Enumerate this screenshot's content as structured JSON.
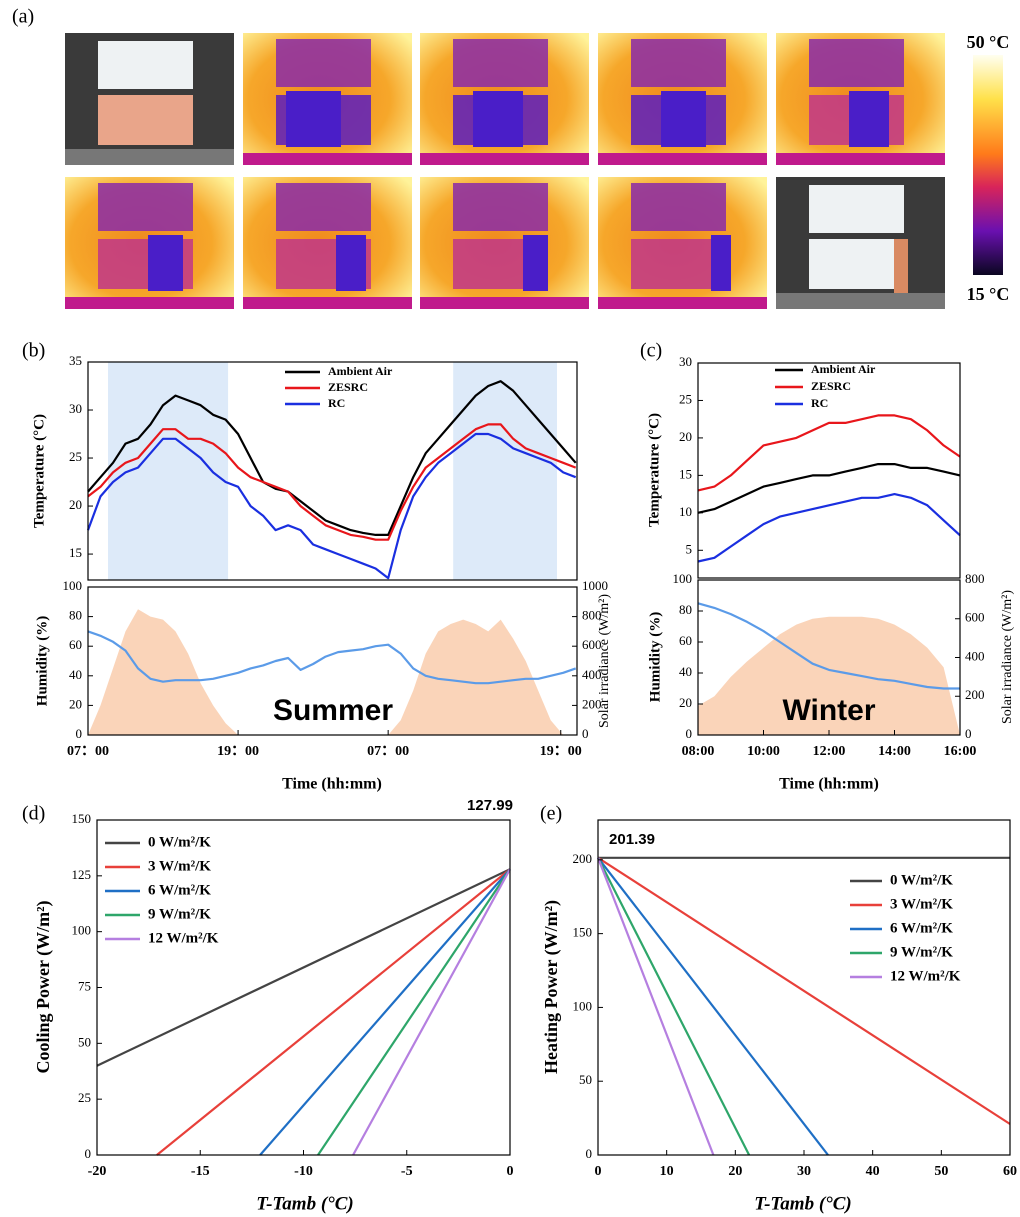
{
  "panel_a": {
    "label": "(a)",
    "colorbar_max": "50 °C",
    "colorbar_min": "15 °C"
  },
  "chart_data": [
    {
      "type": "line",
      "panel_label": "(b)",
      "ylabel": "Temperature (°C)",
      "legend": "top-center",
      "x": [
        0,
        1,
        2,
        3,
        4,
        5,
        6,
        7,
        8,
        9,
        10,
        11,
        12,
        13,
        14,
        15,
        16,
        17,
        18,
        19,
        20,
        21,
        22,
        23,
        24,
        25,
        26,
        27,
        28,
        29,
        30,
        31,
        32,
        33,
        34,
        35,
        36,
        37,
        38,
        39
      ],
      "xlim": [
        0,
        39.1
      ],
      "ylim": [
        12.3,
        35
      ],
      "yticks": [
        15,
        20,
        25,
        30,
        35
      ],
      "shaded_regions": [
        [
          1.6,
          11.2
        ],
        [
          29.2,
          37.5
        ]
      ],
      "shade_color": "#ddeaf9",
      "series": [
        {
          "name": "Ambient Air",
          "color": "#000000",
          "values": [
            21.5,
            23,
            24.5,
            26.5,
            27,
            28.5,
            30.5,
            31.5,
            31,
            30.5,
            29.5,
            29,
            27.5,
            25,
            22.5,
            21.8,
            21.5,
            20.5,
            19.5,
            18.5,
            18,
            17.5,
            17.2,
            17,
            17,
            20,
            23,
            25.5,
            27,
            28.5,
            30,
            31.5,
            32.5,
            33,
            32,
            30.5,
            29,
            27.5,
            26,
            24.5
          ]
        },
        {
          "name": "ZESRC",
          "color": "#e8161b",
          "values": [
            21,
            22,
            23.5,
            24.5,
            25,
            26.5,
            28,
            28,
            27,
            27,
            26.5,
            25.5,
            24,
            23,
            22.5,
            22,
            21.5,
            20,
            19,
            18,
            17.5,
            17,
            16.8,
            16.5,
            16.5,
            19.5,
            22,
            24,
            25,
            26,
            27,
            28,
            28.5,
            28.5,
            27,
            26,
            25.5,
            25,
            24.5,
            24
          ]
        },
        {
          "name": "RC",
          "color": "#1a2fe0",
          "values": [
            17.5,
            21,
            22.5,
            23.5,
            24,
            25.5,
            27,
            27,
            26,
            25,
            23.5,
            22.5,
            22,
            20,
            19,
            17.5,
            18,
            17.5,
            16,
            15.5,
            15,
            14.5,
            14,
            13.5,
            12.5,
            17.5,
            21,
            23,
            24.5,
            25.5,
            26.5,
            27.5,
            27.5,
            27,
            26,
            25.5,
            25,
            24.5,
            23.5,
            23
          ]
        }
      ]
    },
    {
      "type": "line",
      "ylabel": "Humidity (%)",
      "ylabel_color": "#5b9be8",
      "y2label": "Solar irradiance (W/m²)",
      "y2label_color": "#f4a46e",
      "xlabel": "Time (hh:mm)",
      "annotation": "Summer",
      "x": [
        0,
        1,
        2,
        3,
        4,
        5,
        6,
        7,
        8,
        9,
        10,
        11,
        12,
        13,
        14,
        15,
        16,
        17,
        18,
        19,
        20,
        21,
        22,
        23,
        24,
        25,
        26,
        27,
        28,
        29,
        30,
        31,
        32,
        33,
        34,
        35,
        36,
        37,
        38,
        39
      ],
      "xlim": [
        0,
        39.1
      ],
      "xticks": [
        {
          "value": 0,
          "label": "07：00"
        },
        {
          "value": 12,
          "label": "19：00"
        },
        {
          "value": 24,
          "label": "07：00"
        },
        {
          "value": 37.8,
          "label": "19：00"
        }
      ],
      "ylim": [
        0,
        100
      ],
      "yticks": [
        0,
        20,
        40,
        60,
        80,
        100
      ],
      "y2lim": [
        0,
        1000
      ],
      "y2ticks": [
        0,
        200,
        400,
        600,
        800,
        1000
      ],
      "series": [
        {
          "color": "#f9c9a8",
          "axis": "y2",
          "fill": true,
          "values": [
            0,
            200,
            450,
            700,
            850,
            800,
            780,
            700,
            550,
            350,
            200,
            80,
            0,
            0,
            0,
            0,
            0,
            0,
            0,
            0,
            0,
            0,
            0,
            0,
            0,
            100,
            300,
            550,
            700,
            750,
            780,
            750,
            700,
            780,
            650,
            500,
            300,
            100,
            0,
            0
          ]
        },
        {
          "color": "#5b9be8",
          "values": [
            70,
            67,
            63,
            57,
            45,
            38,
            36,
            37,
            37,
            37,
            38,
            40,
            42,
            45,
            47,
            50,
            52,
            44,
            48,
            53,
            56,
            57,
            58,
            60,
            61,
            55,
            45,
            40,
            38,
            37,
            36,
            35,
            35,
            36,
            37,
            38,
            38,
            40,
            42,
            45
          ]
        }
      ]
    },
    {
      "type": "line",
      "panel_label": "(c)",
      "ylabel": "Temperature (°C)",
      "legend": "top-center",
      "x": [
        8,
        8.5,
        9,
        9.5,
        10,
        10.5,
        11,
        11.5,
        12,
        12.5,
        13,
        13.5,
        14,
        14.5,
        15,
        15.5,
        16
      ],
      "xlim": [
        8,
        16
      ],
      "ylim": [
        1.3,
        30
      ],
      "yticks": [
        5,
        10,
        15,
        20,
        25,
        30
      ],
      "series": [
        {
          "name": "Ambient Air",
          "color": "#000000",
          "values": [
            10,
            10.5,
            11.5,
            12.5,
            13.5,
            14,
            14.5,
            15,
            15,
            15.5,
            16,
            16.5,
            16.5,
            16,
            16,
            15.5,
            15
          ]
        },
        {
          "name": "ZESRC",
          "color": "#e8161b",
          "values": [
            13,
            13.5,
            15,
            17,
            19,
            19.5,
            20,
            21,
            22,
            22,
            22.5,
            23,
            23,
            22.5,
            21,
            19,
            17.5
          ]
        },
        {
          "name": "RC",
          "color": "#1a2fe0",
          "values": [
            3.5,
            4,
            5.5,
            7,
            8.5,
            9.5,
            10,
            10.5,
            11,
            11.5,
            12,
            12,
            12.5,
            12,
            11,
            9,
            7
          ]
        }
      ]
    },
    {
      "type": "line",
      "ylabel": "Humidity (%)",
      "ylabel_color": "#5b9be8",
      "y2label": "Solar irradiance (W/m²)",
      "y2label_color": "#f4a46e",
      "xlabel": "Time (hh:mm)",
      "annotation": "Winter",
      "x": [
        8,
        8.5,
        9,
        9.5,
        10,
        10.5,
        11,
        11.5,
        12,
        12.5,
        13,
        13.5,
        14,
        14.5,
        15,
        15.5,
        16
      ],
      "xlim": [
        8,
        16
      ],
      "xticks": [
        {
          "value": 8,
          "label": "08:00"
        },
        {
          "value": 10,
          "label": "10:00"
        },
        {
          "value": 12,
          "label": "12:00"
        },
        {
          "value": 14,
          "label": "14:00"
        },
        {
          "value": 16,
          "label": "16:00"
        }
      ],
      "ylim": [
        0,
        100
      ],
      "yticks": [
        0,
        20,
        40,
        60,
        80,
        100
      ],
      "y2lim": [
        0,
        800
      ],
      "y2ticks": [
        0,
        200,
        400,
        600,
        800
      ],
      "series": [
        {
          "color": "#f9c9a8",
          "axis": "y2",
          "fill": true,
          "values": [
            150,
            200,
            300,
            380,
            450,
            520,
            570,
            600,
            610,
            610,
            610,
            600,
            570,
            520,
            450,
            350,
            0
          ]
        },
        {
          "color": "#5b9be8",
          "values": [
            85,
            82,
            78,
            73,
            67,
            60,
            53,
            46,
            42,
            40,
            38,
            36,
            35,
            33,
            31,
            30,
            30
          ]
        }
      ]
    },
    {
      "type": "line",
      "panel_label": "(d)",
      "ylabel": "Cooling Power (W/m²)",
      "xlabel": "T-Tamb (°C)",
      "legend": "upper-left",
      "annotation": "127.99",
      "xlim": [
        -20,
        0
      ],
      "xticks": [
        -20,
        -15,
        -10,
        -5,
        0
      ],
      "ylim": [
        0,
        150
      ],
      "yticks": [
        0,
        25,
        50,
        75,
        100,
        125,
        150
      ],
      "series": [
        {
          "name": "0 W/m²/K",
          "color": "#444444",
          "x": [
            -20,
            0
          ],
          "values": [
            40,
            127.99
          ]
        },
        {
          "name": "3 W/m²/K",
          "color": "#e8403a",
          "x": [
            -17.1,
            0
          ],
          "values": [
            0,
            127.99
          ]
        },
        {
          "name": "6 W/m²/K",
          "color": "#1f6fc5",
          "x": [
            -12.1,
            0
          ],
          "values": [
            0,
            127.99
          ]
        },
        {
          "name": "9 W/m²/K",
          "color": "#2ea66a",
          "x": [
            -9.3,
            0
          ],
          "values": [
            0,
            127.99
          ]
        },
        {
          "name": "12 W/m²/K",
          "color": "#b57fe0",
          "x": [
            -7.6,
            0
          ],
          "values": [
            0,
            127.99
          ]
        }
      ]
    },
    {
      "type": "line",
      "panel_label": "(e)",
      "ylabel": "Heating Power (W/m²)",
      "xlabel": "T-Tamb (°C)",
      "legend": "right",
      "annotation": "201.39",
      "xlim": [
        0,
        60
      ],
      "xticks": [
        0,
        10,
        20,
        30,
        40,
        50,
        60
      ],
      "ylim": [
        0,
        227
      ],
      "yticks": [
        0,
        50,
        100,
        150,
        200
      ],
      "series": [
        {
          "name": "0 W/m²/K",
          "color": "#444444",
          "x": [
            0,
            60
          ],
          "values": [
            201.39,
            201.39
          ]
        },
        {
          "name": "3 W/m²/K",
          "color": "#e8403a",
          "x": [
            0,
            60
          ],
          "values": [
            201.39,
            21
          ]
        },
        {
          "name": "6 W/m²/K",
          "color": "#1f6fc5",
          "x": [
            0,
            33.5
          ],
          "values": [
            201.39,
            0
          ]
        },
        {
          "name": "9 W/m²/K",
          "color": "#2ea66a",
          "x": [
            0,
            22
          ],
          "values": [
            201.39,
            0
          ]
        },
        {
          "name": "12 W/m²/K",
          "color": "#b57fe0",
          "x": [
            0,
            16.8
          ],
          "values": [
            201.39,
            0
          ]
        }
      ]
    }
  ]
}
